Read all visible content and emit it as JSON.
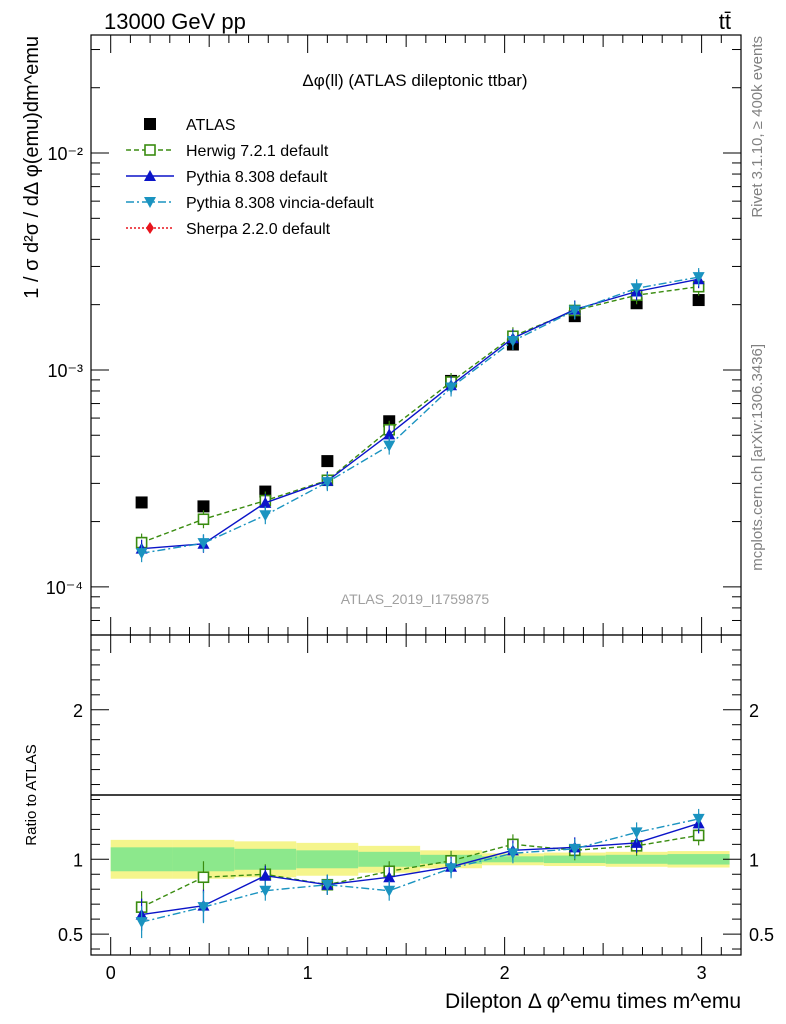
{
  "header": {
    "left": "13000 GeV pp",
    "right": "tt̄",
    "side_rivet": "Rivet 3.1.10, ≥ 400k events",
    "side_mcplots": "mcplots.cern.ch [arXiv:1306.3436]",
    "watermark": "ATLAS_2019_I1759875"
  },
  "chart_data": [
    {
      "type": "scatter",
      "title": "Δφ(ll) (ATLAS dileptonic ttbar)",
      "xlabel": "Dilepton Δ φ^emu times m^emu",
      "ylabel": "1 / σ d²σ / dΔ φ(emu)dm^emu",
      "yscale": "log",
      "xlim": [
        -0.1,
        3.2
      ],
      "ylim": [
        6e-05,
        0.035
      ],
      "x_ticks": [
        "0",
        "1",
        "2",
        "3"
      ],
      "y_ticks": [
        "10⁻⁴",
        "10⁻³",
        "10⁻²"
      ],
      "x": [
        0.157,
        0.471,
        0.785,
        1.1,
        1.414,
        1.728,
        2.042,
        2.356,
        2.67,
        2.985
      ],
      "legend": [
        "ATLAS",
        "Herwig 7.2.1 default",
        "Pythia 8.308 default",
        "Pythia 8.308 vincia-default",
        "Sherpa 2.2.0 default"
      ],
      "series": [
        {
          "name": "ATLAS",
          "color": "#000000",
          "marker": "square-filled",
          "values": [
            0.000245,
            0.000235,
            0.000275,
            0.00038,
            0.00058,
            0.00089,
            0.00131,
            0.00177,
            0.00203,
            0.0021
          ]
        },
        {
          "name": "Herwig 7.2.1 default",
          "color": "#3a8c10",
          "marker": "square-open",
          "line": "dashed",
          "values": [
            0.00016,
            0.000205,
            0.00025,
            0.00031,
            0.00053,
            0.00088,
            0.00143,
            0.00188,
            0.00221,
            0.00242
          ]
        },
        {
          "name": "Pythia 8.308 default",
          "color": "#0b14c8",
          "marker": "triangle-up",
          "line": "solid",
          "values": [
            0.00015,
            0.000158,
            0.000244,
            0.000308,
            0.000505,
            0.00085,
            0.0014,
            0.0019,
            0.0023,
            0.00262
          ]
        },
        {
          "name": "Pythia 8.308 vincia-default",
          "color": "#1a93c0",
          "marker": "triangle-down",
          "line": "dashdot",
          "values": [
            0.000143,
            0.000159,
            0.000214,
            0.000304,
            0.000448,
            0.00083,
            0.00136,
            0.00188,
            0.00238,
            0.00268
          ]
        },
        {
          "name": "Sherpa 2.2.0 default",
          "color": "#e8141c",
          "marker": "diamond",
          "line": "dotted",
          "values": []
        }
      ]
    },
    {
      "type": "scatter",
      "ylabel": "Ratio to ATLAS",
      "xlim": [
        -0.1,
        3.2
      ],
      "ylim": [
        0.36,
        2.5
      ],
      "y_ticks": [
        "0.5",
        "1",
        "2"
      ],
      "bands": {
        "x_edges": [
          0.0,
          0.314,
          0.628,
          0.942,
          1.257,
          1.571,
          1.885,
          2.199,
          2.513,
          2.827,
          3.142
        ],
        "inner_half": [
          0.08,
          0.08,
          0.07,
          0.06,
          0.05,
          0.03,
          0.02,
          0.025,
          0.03,
          0.035
        ],
        "outer_half": [
          0.13,
          0.13,
          0.12,
          0.11,
          0.09,
          0.06,
          0.04,
          0.045,
          0.05,
          0.055
        ],
        "inner_color": "#8ce88c",
        "outer_color": "#f5f58c"
      },
      "series": [
        {
          "name": "Herwig 7.2.1 default",
          "values": [
            0.68,
            0.88,
            0.9,
            0.83,
            0.92,
            0.99,
            1.1,
            1.06,
            1.09,
            1.16
          ]
        },
        {
          "name": "Pythia 8.308 default",
          "values": [
            0.63,
            0.69,
            0.89,
            0.83,
            0.88,
            0.95,
            1.06,
            1.08,
            1.11,
            1.24
          ]
        },
        {
          "name": "Pythia 8.308 vincia-default",
          "values": [
            0.58,
            0.68,
            0.79,
            0.83,
            0.79,
            0.94,
            1.04,
            1.07,
            1.18,
            1.27
          ]
        }
      ]
    }
  ]
}
